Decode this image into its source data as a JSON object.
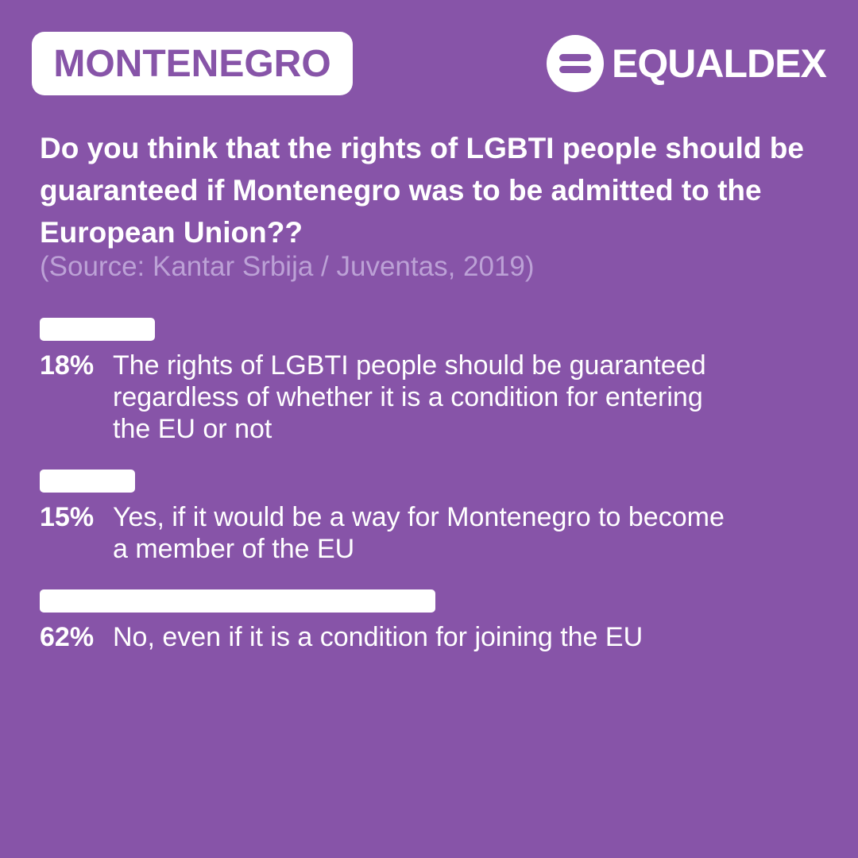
{
  "chart_data": {
    "type": "bar",
    "badge": "MONTENEGRO",
    "brand": "EQUALDEX",
    "title": "Do you think that the rights of LGBTI people should be guaranteed if Montenegro was to be admitted to the European Union??",
    "subtitle": "(Source: Kantar Srbija / Juventas, 2019)",
    "categories": [
      "The rights of LGBTI people should be guaranteed regardless of whether it is a condition for entering the EU or not",
      "Yes, if it would be a way for Montenegro to become a member of the EU",
      "No, even if it is a condition for joining the EU"
    ],
    "values": [
      18,
      15,
      62
    ],
    "value_labels": [
      "18%",
      "15%",
      "62%"
    ],
    "color": "#ffffff",
    "background": "#8754a8"
  }
}
